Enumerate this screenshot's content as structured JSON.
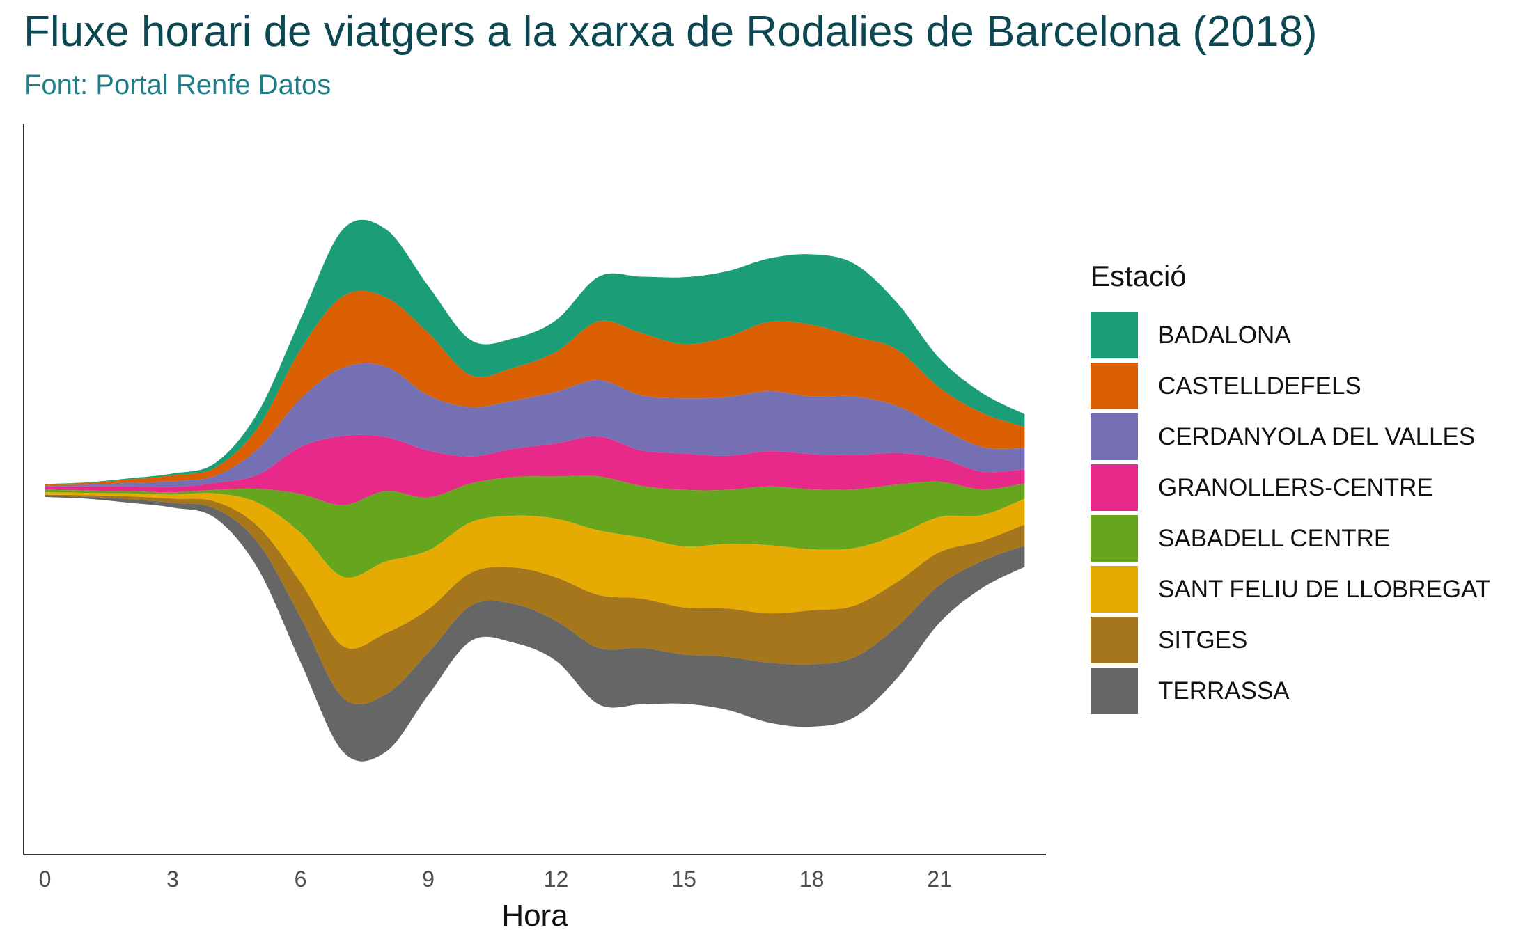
{
  "title": "Fluxe horari de viatgers a la xarxa de Rodalies de Barcelona (2018)",
  "subtitle": "Font: Portal Renfe Datos",
  "legend": {
    "title": "Estació",
    "items": [
      {
        "label": "BADALONA",
        "color": "#1b9e77"
      },
      {
        "label": "CASTELLDEFELS",
        "color": "#d95f02"
      },
      {
        "label": "CERDANYOLA DEL VALLES",
        "color": "#7570b3"
      },
      {
        "label": "GRANOLLERS-CENTRE",
        "color": "#e7298a"
      },
      {
        "label": "SABADELL CENTRE",
        "color": "#66a61e"
      },
      {
        "label": "SANT FELIU DE LLOBREGAT",
        "color": "#e6ab02"
      },
      {
        "label": "SITGES",
        "color": "#a6761d"
      },
      {
        "label": "TERRASSA",
        "color": "#666666"
      }
    ]
  },
  "chart_data": {
    "type": "area",
    "subtype": "streamgraph",
    "title": "Fluxe horari de viatgers a la xarxa de Rodalies de Barcelona (2018)",
    "subtitle": "Font: Portal Renfe Datos",
    "xlabel": "Hora",
    "ylabel": "",
    "xlim": [
      -0.5,
      23.5
    ],
    "ylim": [
      -310,
      312
    ],
    "xticks": [
      0,
      3,
      6,
      9,
      12,
      15,
      18,
      21
    ],
    "yaxis_labels": false,
    "grid": false,
    "legend_position": "right",
    "x": [
      0,
      1,
      2,
      3,
      4,
      5,
      6,
      7,
      8,
      9,
      10,
      11,
      12,
      13,
      14,
      15,
      16,
      17,
      18,
      19,
      20,
      21,
      22,
      23
    ],
    "series": [
      {
        "name": "BADALONA",
        "values": [
          0.3,
          0.5,
          1,
          1.5,
          4,
          13,
          26,
          57,
          58,
          40,
          30,
          25,
          27,
          38,
          48,
          57,
          56,
          54,
          60,
          62,
          40,
          25,
          17,
          11
        ]
      },
      {
        "name": "CASTELLDEFELS",
        "values": [
          0.7,
          1.5,
          3,
          5,
          7,
          18,
          42,
          61,
          59,
          53,
          27,
          28,
          34,
          50,
          53,
          46,
          51,
          59,
          61,
          51,
          48,
          34,
          29,
          18
        ]
      },
      {
        "name": "CERDANYOLA DEL VALLES",
        "values": [
          1,
          1.5,
          3,
          5,
          6,
          22,
          41,
          58,
          60,
          47,
          42,
          41,
          44,
          48,
          47,
          47,
          50,
          51,
          49,
          50,
          40,
          26,
          21,
          18
        ]
      },
      {
        "name": "GRANOLLERS-CENTRE",
        "values": [
          3,
          3.5,
          4,
          4.5,
          6,
          12,
          40,
          59,
          46,
          40,
          23,
          24,
          28,
          34,
          30,
          31,
          29,
          30,
          30,
          29,
          27,
          20,
          15,
          12
        ]
      },
      {
        "name": "SABADELL CENTRE",
        "values": [
          2,
          2,
          2,
          2,
          3,
          12,
          33,
          61,
          60,
          45,
          33,
          33,
          36,
          46,
          44,
          48,
          46,
          50,
          51,
          50,
          43,
          30,
          22,
          13
        ]
      },
      {
        "name": "SANT FELIU DE LLOBREGAT",
        "values": [
          2,
          2,
          2.5,
          3.5,
          7,
          20,
          42,
          59,
          61,
          50,
          43,
          44,
          50,
          55,
          52,
          52,
          55,
          58,
          52,
          49,
          40,
          30,
          22,
          22
        ]
      },
      {
        "name": "SITGES",
        "values": [
          1,
          1.5,
          2.5,
          3.5,
          6,
          14,
          30,
          44,
          52,
          37,
          28,
          31,
          37,
          45,
          42,
          40,
          41,
          42,
          46,
          44,
          38,
          28,
          17,
          18
        ]
      },
      {
        "name": "TERRASSA",
        "values": [
          1,
          1.5,
          3,
          4,
          8,
          22,
          38,
          46,
          49,
          36,
          30,
          33,
          34,
          48,
          48,
          42,
          45,
          51,
          53,
          51,
          44,
          32,
          23,
          18
        ]
      }
    ],
    "offset": "streamgraph-centered"
  },
  "axis": {
    "xlabel": "Hora",
    "ticks": [
      "0",
      "3",
      "6",
      "9",
      "12",
      "15",
      "18",
      "21"
    ]
  }
}
